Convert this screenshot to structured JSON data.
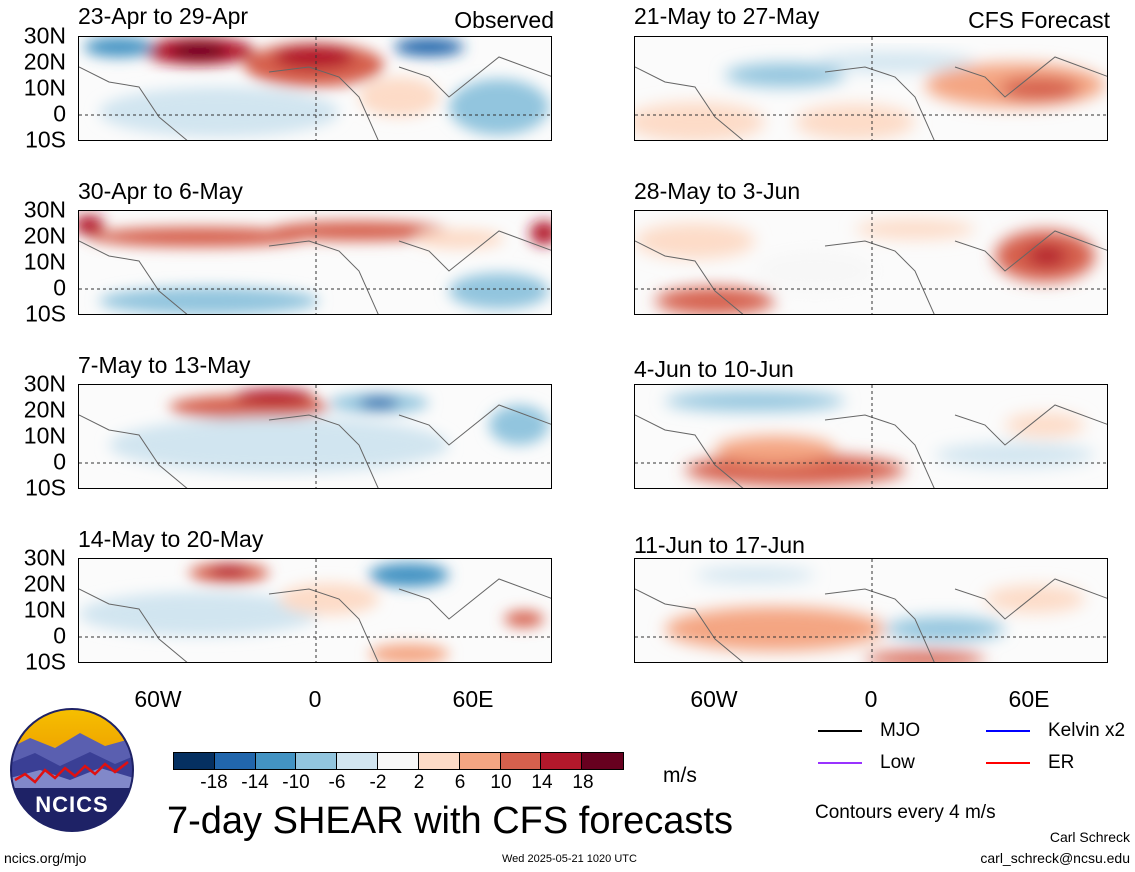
{
  "panels": [
    {
      "title": "23-Apr to 29-Apr",
      "corner": "Observed"
    },
    {
      "title": "21-May to 27-May",
      "corner": "CFS Forecast"
    },
    {
      "title": "30-Apr to 6-May",
      "corner": ""
    },
    {
      "title": "28-May to 3-Jun",
      "corner": ""
    },
    {
      "title": "7-May to 13-May",
      "corner": ""
    },
    {
      "title": "4-Jun to 10-Jun",
      "corner": ""
    },
    {
      "title": "14-May to 20-May",
      "corner": ""
    },
    {
      "title": "11-Jun to 17-Jun",
      "corner": ""
    }
  ],
  "lat_ticks": [
    "30N",
    "20N",
    "10N",
    "0",
    "10S"
  ],
  "lon_ticks": [
    "60W",
    "0",
    "60E"
  ],
  "colorbar": {
    "ticks": [
      "-18",
      "-14",
      "-10",
      "-6",
      "-2",
      "2",
      "6",
      "10",
      "14",
      "18"
    ],
    "colors": [
      "#053061",
      "#2166ac",
      "#4393c3",
      "#92c5de",
      "#d1e5f0",
      "#f7f7f7",
      "#fddbc7",
      "#f4a582",
      "#d6604d",
      "#b2182b",
      "#67001f"
    ],
    "unit": "m/s"
  },
  "legend": {
    "mjo": {
      "label": "MJO",
      "color": "#000000"
    },
    "kelvin": {
      "label": "Kelvin x2",
      "color": "#0000ff"
    },
    "low": {
      "label": "Low",
      "color": "#9933ff"
    },
    "er": {
      "label": "ER",
      "color": "#ff0000"
    }
  },
  "contours_note": "Contours every 4 m/s",
  "main_title": "7-day SHEAR with CFS forecasts",
  "logo_text": "NCICS",
  "footer": {
    "url": "ncics.org/mjo",
    "timestamp": "Wed 2025-05-21 1020 UTC",
    "author": "Carl Schreck",
    "email": "carl_schreck@ncsu.edu"
  }
}
